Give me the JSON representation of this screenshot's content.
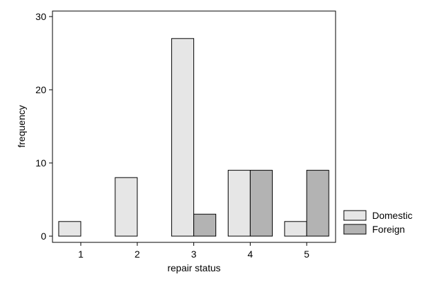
{
  "chart_data": {
    "type": "bar",
    "xlabel": "repair status",
    "ylabel": "frequency",
    "categories": [
      "1",
      "2",
      "3",
      "4",
      "5"
    ],
    "series": [
      {
        "name": "Domestic",
        "color": "#e6e6e6",
        "values": [
          2,
          8,
          27,
          9,
          2
        ]
      },
      {
        "name": "Foreign",
        "color": "#b3b3b3",
        "values": [
          0,
          0,
          3,
          9,
          9
        ]
      }
    ],
    "ylim": [
      0,
      30
    ],
    "yticks": [
      0,
      10,
      20,
      30
    ],
    "grid": false,
    "legend_position": "bottom-right"
  }
}
